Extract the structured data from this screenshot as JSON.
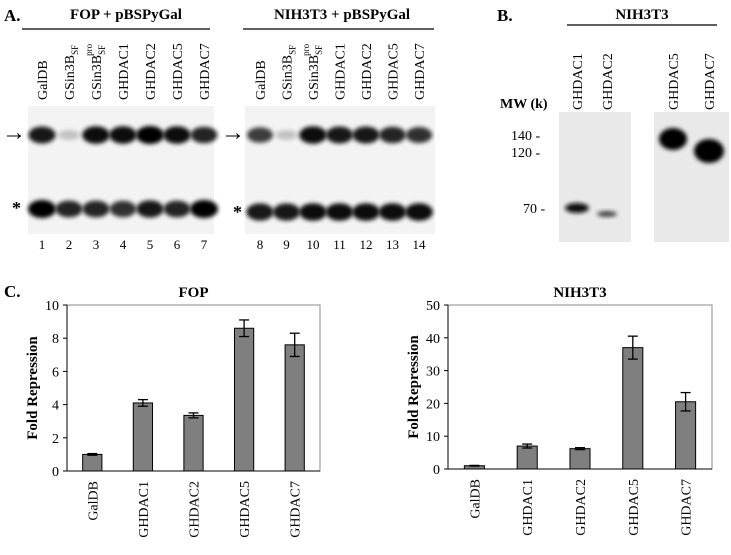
{
  "panel_a": {
    "label": "A.",
    "left": {
      "title": "FOP + pBSPyGal",
      "lanes": [
        "GalDB",
        "GSin3B_SF",
        "GSin3B_SF^pro",
        "GHDAC1",
        "GHDAC2",
        "GHDAC5",
        "GHDAC7"
      ],
      "lane_numbers": [
        "1",
        "2",
        "3",
        "4",
        "5",
        "6",
        "7"
      ],
      "upper_band_intensity": [
        0.9,
        0.2,
        0.95,
        0.95,
        1.0,
        0.95,
        0.85
      ],
      "lower_band_intensity": [
        1.0,
        0.85,
        0.85,
        0.8,
        0.9,
        0.85,
        1.0
      ]
    },
    "right": {
      "title": "NIH3T3 + pBSPyGal",
      "lanes": [
        "GalDB",
        "GSin3B_SF",
        "GSin3B_SF^pro",
        "GHDAC1",
        "GHDAC2",
        "GHDAC5",
        "GHDAC7"
      ],
      "lane_numbers": [
        "8",
        "9",
        "10",
        "11",
        "12",
        "13",
        "14"
      ],
      "upper_band_intensity": [
        0.75,
        0.2,
        0.95,
        0.9,
        0.9,
        0.85,
        0.8
      ],
      "lower_band_intensity": [
        0.9,
        0.9,
        0.95,
        0.95,
        0.95,
        0.95,
        0.95
      ]
    },
    "arrow_symbol": "→",
    "star_symbol": "*"
  },
  "panel_b": {
    "label": "B.",
    "title": "NIH3T3",
    "mw_label": "MW (k)",
    "markers": [
      "140 -",
      "120 -",
      "70 -"
    ],
    "blot1": {
      "lanes": [
        "GHDAC1",
        "GHDAC2"
      ]
    },
    "blot2": {
      "lanes": [
        "GHDAC5",
        "GHDAC7"
      ]
    }
  },
  "panel_c": {
    "label": "C."
  },
  "chart_data": [
    {
      "type": "bar",
      "title": "FOP",
      "ylabel": "Fold Repression",
      "categories": [
        "GalDB",
        "GHDAC1",
        "GHDAC2",
        "GHDAC5",
        "GHDAC7"
      ],
      "values": [
        1.0,
        4.1,
        3.35,
        8.6,
        7.6
      ],
      "errors": [
        0.05,
        0.2,
        0.15,
        0.5,
        0.7
      ],
      "ylim": [
        0,
        10
      ],
      "yticks": [
        0,
        2,
        4,
        6,
        8,
        10
      ],
      "bar_color": "#7f7f7f",
      "grid": false
    },
    {
      "type": "bar",
      "title": "NIH3T3",
      "ylabel": "Fold Repression",
      "categories": [
        "GalDB",
        "GHDAC1",
        "GHDAC2",
        "GHDAC5",
        "GHDAC7"
      ],
      "values": [
        1.0,
        7.0,
        6.2,
        37.0,
        20.5
      ],
      "errors": [
        0.1,
        0.6,
        0.3,
        3.5,
        2.8
      ],
      "ylim": [
        0,
        50
      ],
      "yticks": [
        0,
        10,
        20,
        30,
        40,
        50
      ],
      "bar_color": "#7f7f7f",
      "grid": false
    }
  ]
}
